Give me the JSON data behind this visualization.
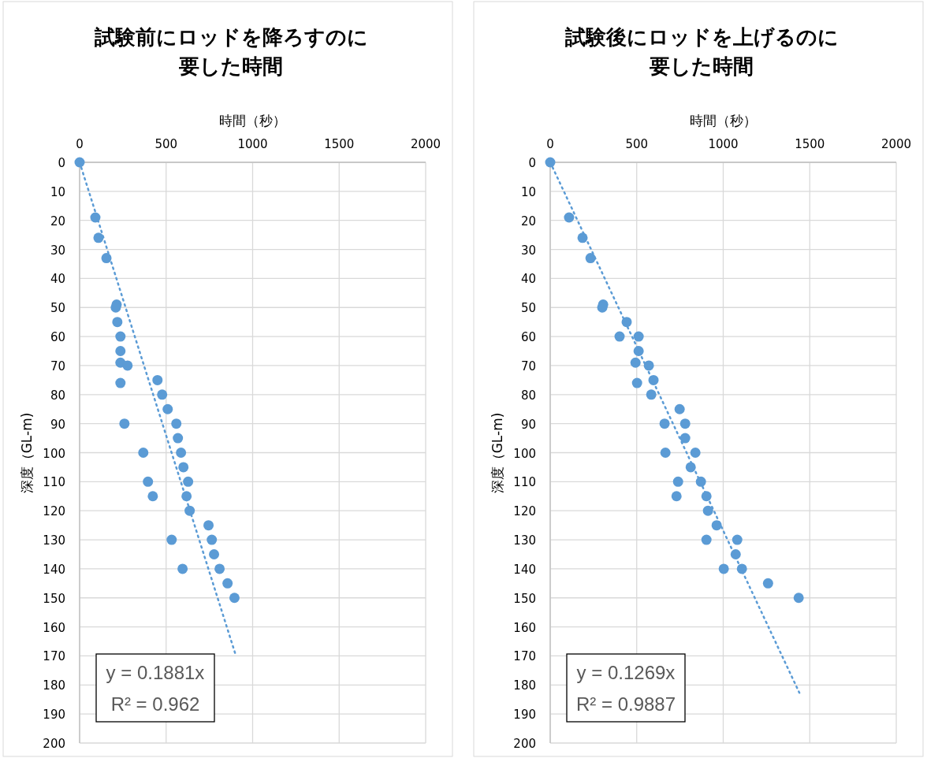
{
  "chart_data": [
    {
      "type": "scatter",
      "title": "試験前にロッドを降ろすのに要した時間",
      "xlabel": "時間（秒）",
      "ylabel": "深度（GL-m)",
      "xlim": [
        0,
        2000
      ],
      "xticks": [
        0,
        500,
        1000,
        1500,
        2000
      ],
      "ylim": [
        200,
        0
      ],
      "yticks": [
        0,
        10,
        20,
        30,
        40,
        50,
        60,
        70,
        80,
        90,
        100,
        110,
        120,
        130,
        140,
        150,
        160,
        170,
        180,
        190,
        200
      ],
      "grid": true,
      "annotations": [
        "y = 0.1881x",
        "R² = 0.962"
      ],
      "series": [
        {
          "type": "scatter",
          "color": "#5b9bd5",
          "marker": "circle",
          "x": [
            0,
            91,
            109,
            155,
            214,
            209,
            218,
            236,
            236,
            236,
            277,
            236,
            450,
            477,
            509,
            259,
            559,
            568,
            586,
            368,
            600,
            627,
            395,
            618,
            423,
            636,
            745,
            764,
            532,
            777,
            809,
            595,
            855,
            895
          ],
          "values": [
            0,
            19,
            26,
            33,
            49,
            50,
            55,
            60,
            65,
            69,
            70,
            76,
            75,
            80,
            85,
            90,
            90,
            95,
            100,
            100,
            105,
            110,
            110,
            115,
            115,
            120,
            125,
            130,
            130,
            135,
            140,
            140,
            145,
            150
          ]
        },
        {
          "type": "line",
          "color": "#5b9bd5",
          "line_style": "dotted",
          "marker": "none",
          "x": [
            0,
            900
          ],
          "values": [
            0,
            169.3
          ]
        }
      ]
    },
    {
      "type": "scatter",
      "title": "試験後にロッドを上げるのに要した時間",
      "xlabel": "時間（秒）",
      "ylabel": "深度（GL-m)",
      "xlim": [
        0,
        2000
      ],
      "xticks": [
        0,
        500,
        1000,
        1500,
        2000
      ],
      "ylim": [
        200,
        0
      ],
      "yticks": [
        0,
        10,
        20,
        30,
        40,
        50,
        60,
        70,
        80,
        90,
        100,
        110,
        120,
        130,
        140,
        150,
        160,
        170,
        180,
        190,
        200
      ],
      "grid": true,
      "annotations": [
        "y = 0.1269x",
        "R² = 0.9887"
      ],
      "series": [
        {
          "type": "scatter",
          "color": "#5b9bd5",
          "marker": "circle",
          "x": [
            0,
            109,
            187,
            233,
            306,
            301,
            442,
            401,
            511,
            511,
            493,
            570,
            502,
            597,
            584,
            748,
            661,
            780,
            780,
            666,
            839,
            812,
            739,
            871,
            730,
            903,
            912,
            962,
            903,
            1081,
            1072,
            1003,
            1108,
            1259,
            1436
          ],
          "values": [
            0,
            19,
            26,
            33,
            49,
            50,
            55,
            60,
            60,
            65,
            69,
            70,
            76,
            75,
            80,
            85,
            90,
            90,
            95,
            100,
            100,
            105,
            110,
            110,
            115,
            115,
            120,
            125,
            130,
            130,
            135,
            140,
            140,
            145,
            150
          ]
        },
        {
          "type": "line",
          "color": "#5b9bd5",
          "line_style": "dotted",
          "marker": "none",
          "x": [
            0,
            1440
          ],
          "values": [
            0,
            182.7
          ]
        }
      ]
    }
  ]
}
